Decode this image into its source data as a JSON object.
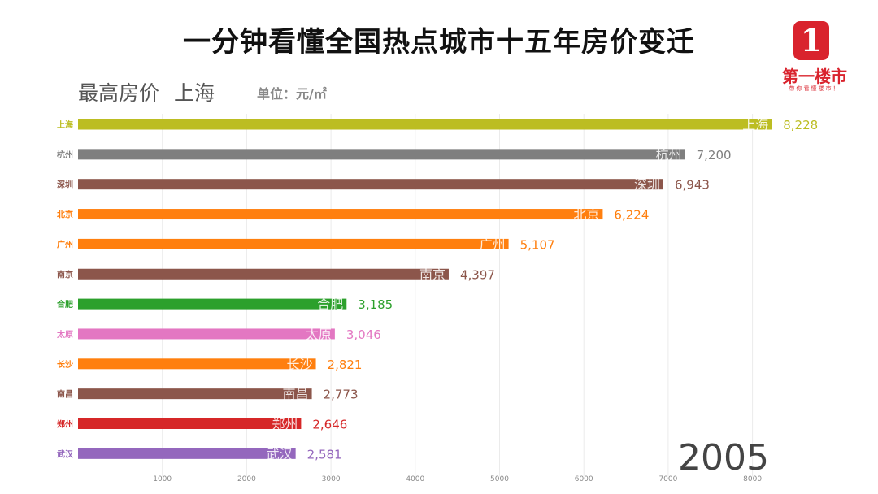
{
  "title": "一分钟看懂全国热点城市十五年房价变迁",
  "subtitle": {
    "metric": "最高房价",
    "leader": "上海"
  },
  "unit": "单位：元/㎡",
  "logo": {
    "mark": "1",
    "name": "第一楼市",
    "slogan": "带你看懂楼市！",
    "color": "#d9232d"
  },
  "year": "2005",
  "chart_data": {
    "type": "bar",
    "orientation": "horizontal",
    "categories": [
      "上海",
      "杭州",
      "深圳",
      "北京",
      "广州",
      "南京",
      "合肥",
      "太原",
      "长沙",
      "南昌",
      "郑州",
      "武汉"
    ],
    "values": [
      8228,
      7200,
      6943,
      6224,
      5107,
      4397,
      3185,
      3046,
      2821,
      2773,
      2646,
      2581
    ],
    "value_labels": [
      "8,228",
      "7,200",
      "6,943",
      "6,224",
      "5,107",
      "4,397",
      "3,185",
      "3,046",
      "2,821",
      "2,773",
      "2,646",
      "2,581"
    ],
    "colors": [
      "#bcbd22",
      "#7f7f7f",
      "#8c564b",
      "#ff7f0e",
      "#ff7f0e",
      "#8c564b",
      "#2ca02c",
      "#e377c2",
      "#ff7f0e",
      "#8c564b",
      "#d62728",
      "#9467bd"
    ],
    "x_ticks": [
      1000,
      2000,
      3000,
      4000,
      5000,
      6000,
      7000,
      8000
    ],
    "xlim": [
      0,
      8000
    ],
    "grid": true,
    "legend": "none"
  }
}
